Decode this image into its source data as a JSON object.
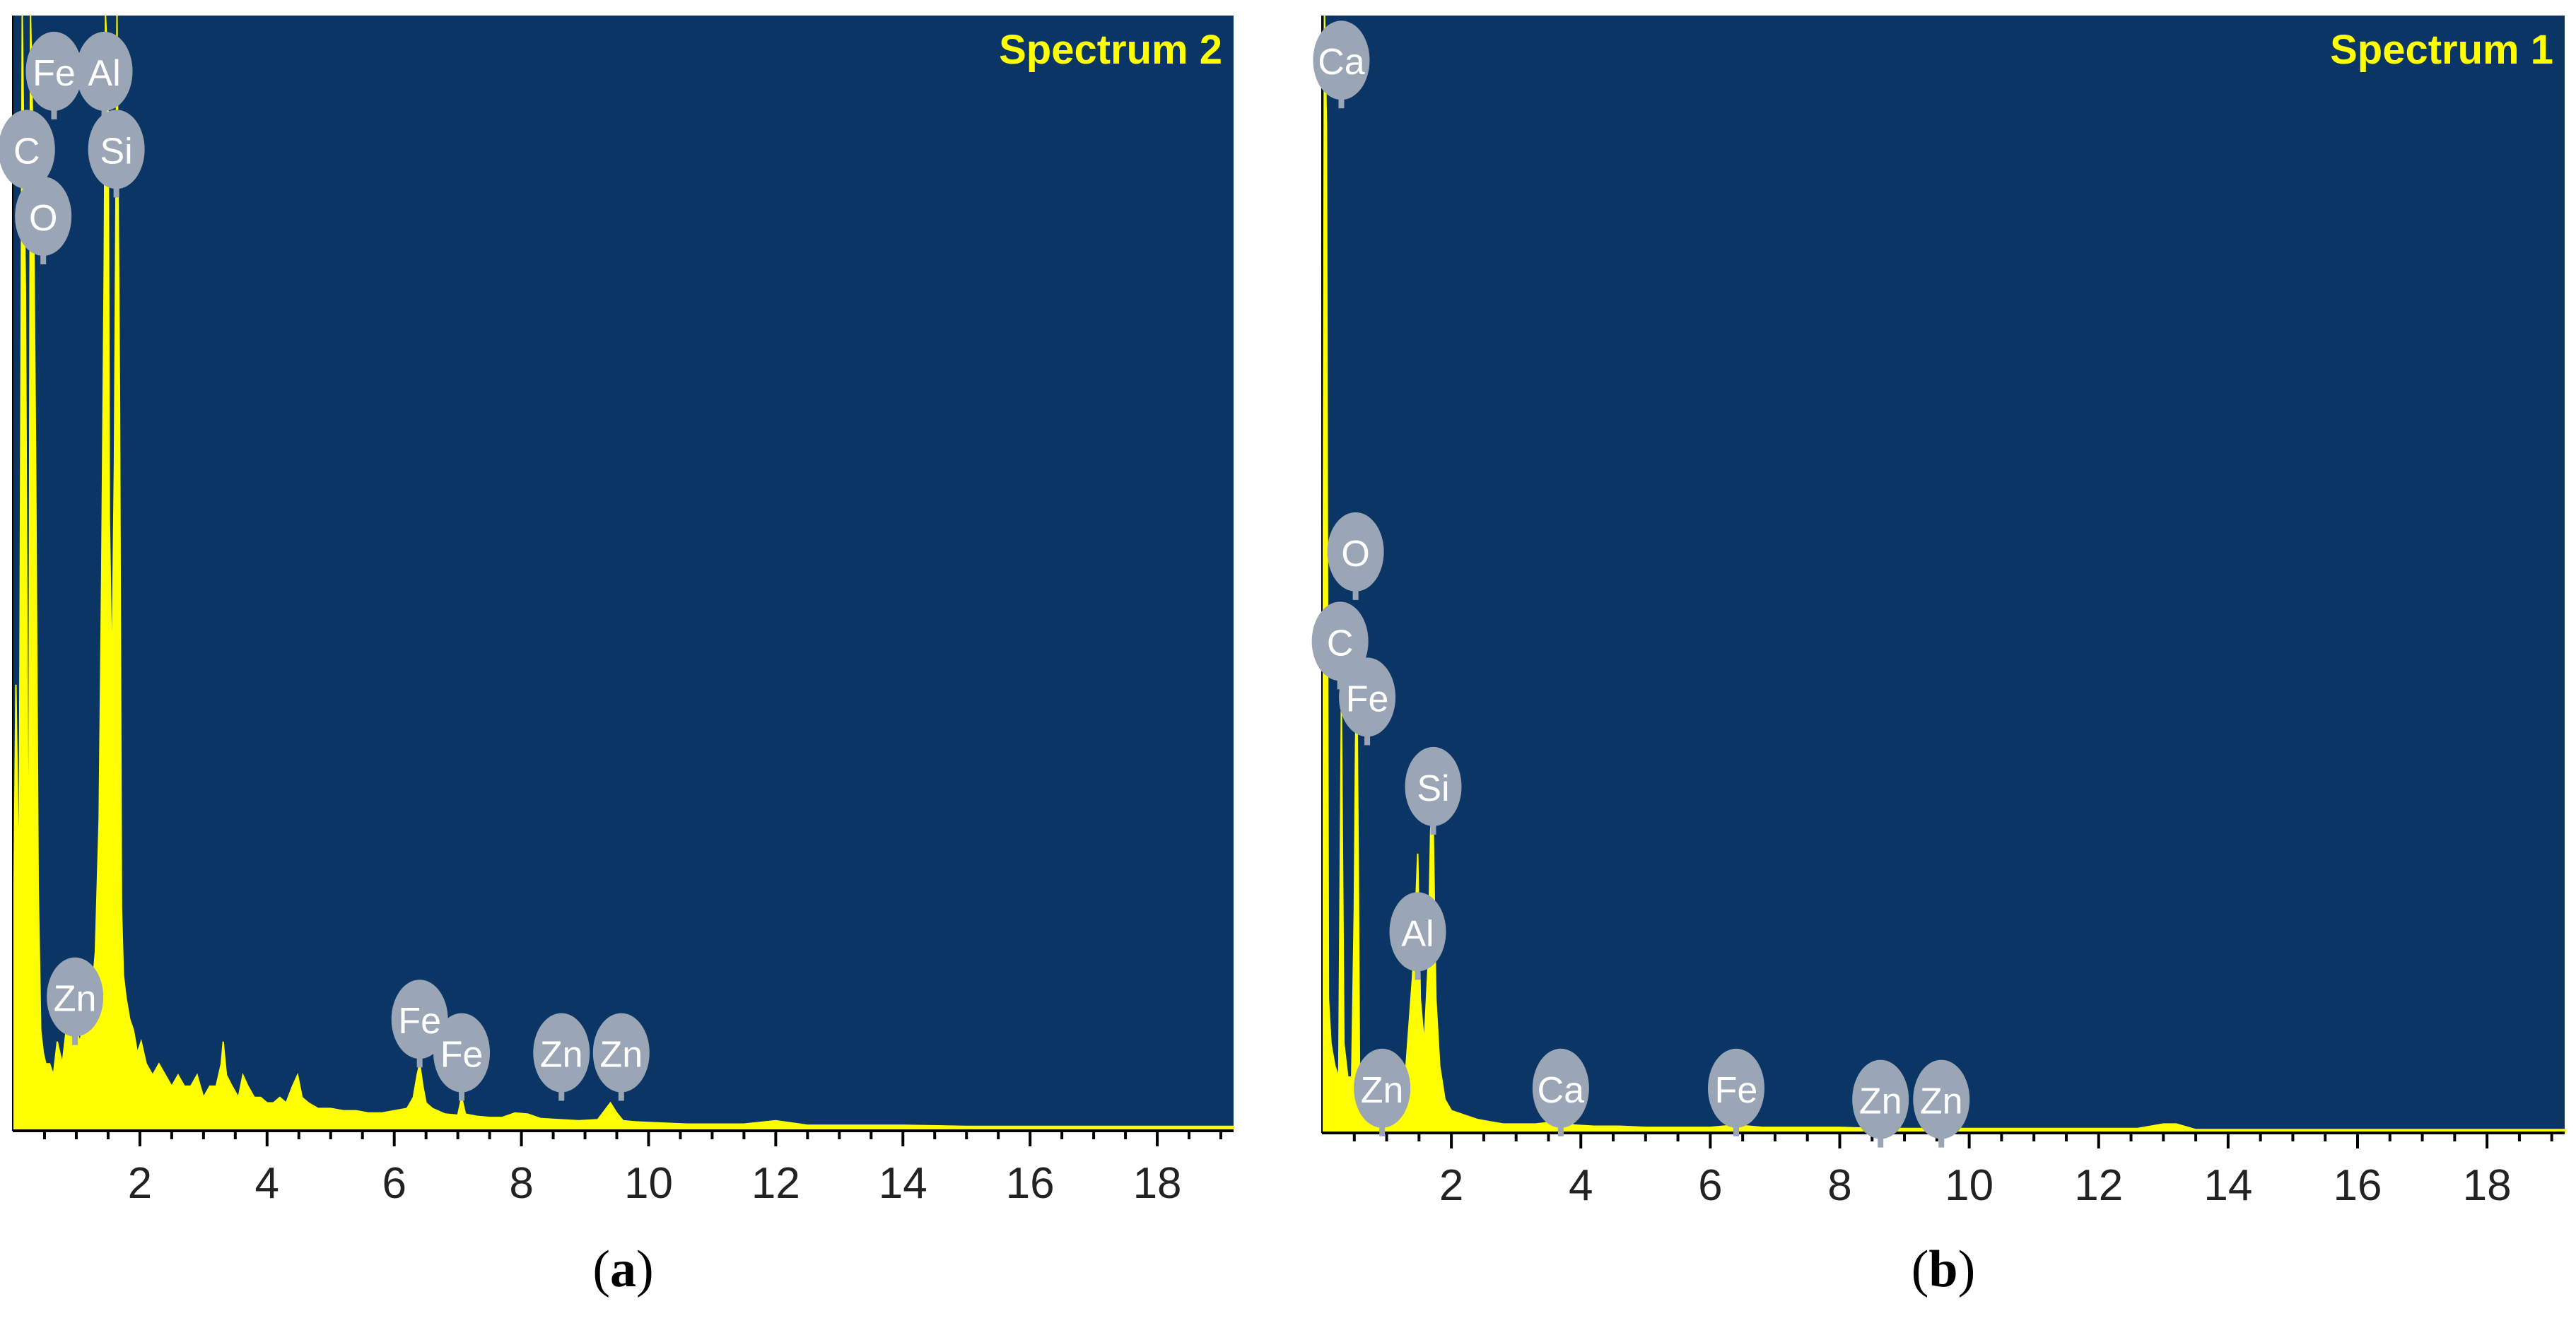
{
  "colors": {
    "plot_background": "#0a3564",
    "spectrum": "#ffff00",
    "title": "#ffff00",
    "badge": "#9aa6b6",
    "badge_text": "#ffffff",
    "axis": "#000000"
  },
  "chart_data": [
    {
      "type": "area",
      "title": "Spectrum 2",
      "caption": {
        "prefix": "(",
        "letter": "a",
        "suffix": ")"
      },
      "xlim": [
        0,
        19.2
      ],
      "ylim": [
        0,
        100
      ],
      "x_ticks": [
        2,
        4,
        6,
        8,
        10,
        12,
        14,
        16,
        18
      ],
      "x_tick_labels": [
        "2",
        "4",
        "6",
        "8",
        "10",
        "12",
        "14",
        "16",
        "18"
      ],
      "grid": false,
      "series": [
        {
          "x": [
            0.0,
            0.05,
            0.1,
            0.15,
            0.2,
            0.25,
            0.28,
            0.32,
            0.36,
            0.4,
            0.44,
            0.48,
            0.52,
            0.58,
            0.64,
            0.7,
            0.78,
            0.86,
            0.94,
            1.0,
            1.06,
            1.12,
            1.18,
            1.24,
            1.3,
            1.36,
            1.4,
            1.44,
            1.46,
            1.48,
            1.5,
            1.52,
            1.56,
            1.6,
            1.64,
            1.68,
            1.71,
            1.74,
            1.78,
            1.84,
            1.9,
            1.96,
            2.02,
            2.1,
            2.2,
            2.3,
            2.4,
            2.5,
            2.6,
            2.7,
            2.8,
            2.9,
            3.0,
            3.1,
            3.2,
            3.28,
            3.31,
            3.36,
            3.45,
            3.55,
            3.62,
            3.7,
            3.8,
            3.9,
            4.0,
            4.1,
            4.2,
            4.3,
            4.4,
            4.48,
            4.55,
            4.65,
            4.8,
            5.0,
            5.2,
            5.4,
            5.6,
            5.8,
            6.0,
            6.2,
            6.3,
            6.36,
            6.4,
            6.45,
            6.5,
            6.6,
            6.8,
            7.0,
            7.06,
            7.12,
            7.3,
            7.5,
            7.7,
            7.9,
            8.1,
            8.3,
            8.6,
            8.9,
            9.2,
            9.4,
            9.5,
            9.6,
            9.8,
            10.2,
            10.6,
            11.0,
            11.5,
            12.0,
            12.5,
            13.0,
            14.0,
            15.0,
            16.0,
            17.0,
            18.0,
            19.2
          ],
          "y": [
            8,
            40,
            20,
            100,
            75,
            12,
            100,
            88,
            60,
            22,
            9,
            7,
            6,
            6,
            5,
            8,
            6,
            10,
            8,
            9,
            8,
            10,
            11,
            12,
            16,
            28,
            50,
            78,
            100,
            97,
            95,
            55,
            40,
            60,
            100,
            65,
            20,
            14,
            12,
            10,
            9,
            7,
            8,
            6,
            5,
            6,
            5,
            4,
            5,
            4,
            4,
            5,
            3,
            4,
            4,
            6,
            8,
            5,
            4,
            3,
            5,
            4,
            3,
            3,
            2.5,
            2.5,
            3,
            2.5,
            4,
            5,
            3,
            2.5,
            2,
            2,
            1.8,
            1.8,
            1.6,
            1.6,
            1.8,
            2,
            3,
            5,
            6,
            4,
            2.5,
            2,
            1.5,
            1.4,
            3,
            1.5,
            1.3,
            1.2,
            1.2,
            1.6,
            1.5,
            1.1,
            1.0,
            0.9,
            1.0,
            2.5,
            1.6,
            0.9,
            0.8,
            0.7,
            0.6,
            0.6,
            0.6,
            0.9,
            0.5,
            0.5,
            0.5,
            0.4,
            0.4,
            0.4,
            0.4,
            0.4
          ]
        }
      ],
      "peak_labels": [
        {
          "element": "C",
          "x": 0.22,
          "y": 88
        },
        {
          "element": "Fe",
          "x": 0.65,
          "y": 95
        },
        {
          "element": "O",
          "x": 0.48,
          "y": 82
        },
        {
          "element": "Al",
          "x": 1.44,
          "y": 95
        },
        {
          "element": "Si",
          "x": 1.63,
          "y": 88
        },
        {
          "element": "Zn",
          "x": 0.98,
          "y": 12
        },
        {
          "element": "Fe",
          "x": 6.4,
          "y": 10
        },
        {
          "element": "Fe",
          "x": 7.06,
          "y": 7
        },
        {
          "element": "Zn",
          "x": 8.63,
          "y": 7
        },
        {
          "element": "Zn",
          "x": 9.57,
          "y": 7
        }
      ]
    },
    {
      "type": "area",
      "title": "Spectrum 1",
      "caption": {
        "prefix": "(",
        "letter": "b",
        "suffix": ")"
      },
      "xlim": [
        0,
        19.2
      ],
      "ylim": [
        0,
        100
      ],
      "x_ticks": [
        2,
        4,
        6,
        8,
        10,
        12,
        14,
        16,
        18
      ],
      "x_tick_labels": [
        "2",
        "4",
        "6",
        "8",
        "10",
        "12",
        "14",
        "16",
        "18"
      ],
      "grid": false,
      "series": [
        {
          "x": [
            0.0,
            0.04,
            0.07,
            0.1,
            0.14,
            0.2,
            0.26,
            0.3,
            0.34,
            0.4,
            0.46,
            0.5,
            0.52,
            0.54,
            0.56,
            0.58,
            0.62,
            0.7,
            0.8,
            0.9,
            1.0,
            1.1,
            1.2,
            1.3,
            1.4,
            1.46,
            1.48,
            1.52,
            1.58,
            1.64,
            1.68,
            1.7,
            1.72,
            1.76,
            1.82,
            1.9,
            2.0,
            2.2,
            2.4,
            2.6,
            2.8,
            3.0,
            3.3,
            3.6,
            3.69,
            3.75,
            3.9,
            4.2,
            4.6,
            5.0,
            5.5,
            6.0,
            6.4,
            6.8,
            7.2,
            7.6,
            8.0,
            8.6,
            9.6,
            10.6,
            11.6,
            12.6,
            13.0,
            13.2,
            13.5,
            14.5,
            16.0,
            17.5,
            19.2
          ],
          "y": [
            0,
            100,
            90,
            12,
            8,
            6,
            5,
            38,
            8,
            5,
            5,
            20,
            35,
            40,
            25,
            6,
            3,
            2.5,
            2,
            2,
            2.5,
            3,
            3.5,
            6,
            14,
            22,
            25,
            12,
            8,
            15,
            27,
            29,
            27,
            12,
            6,
            3,
            2,
            1.6,
            1.2,
            1.0,
            0.8,
            0.8,
            0.8,
            1.0,
            1.6,
            1.0,
            0.7,
            0.6,
            0.6,
            0.5,
            0.5,
            0.5,
            0.7,
            0.5,
            0.5,
            0.5,
            0.5,
            0.4,
            0.4,
            0.4,
            0.4,
            0.4,
            0.8,
            0.8,
            0.3,
            0.3,
            0.3,
            0.3,
            0.3
          ]
        }
      ],
      "peak_labels": [
        {
          "element": "Ca",
          "x": 0.3,
          "y": 96
        },
        {
          "element": "O",
          "x": 0.52,
          "y": 52
        },
        {
          "element": "C",
          "x": 0.28,
          "y": 44
        },
        {
          "element": "Fe",
          "x": 0.7,
          "y": 39
        },
        {
          "element": "Si",
          "x": 1.72,
          "y": 31
        },
        {
          "element": "Al",
          "x": 1.48,
          "y": 18
        },
        {
          "element": "Zn",
          "x": 0.93,
          "y": 4
        },
        {
          "element": "Ca",
          "x": 3.69,
          "y": 4
        },
        {
          "element": "Fe",
          "x": 6.4,
          "y": 4
        },
        {
          "element": "Zn",
          "x": 8.63,
          "y": 3
        },
        {
          "element": "Zn",
          "x": 9.57,
          "y": 3
        }
      ]
    }
  ]
}
